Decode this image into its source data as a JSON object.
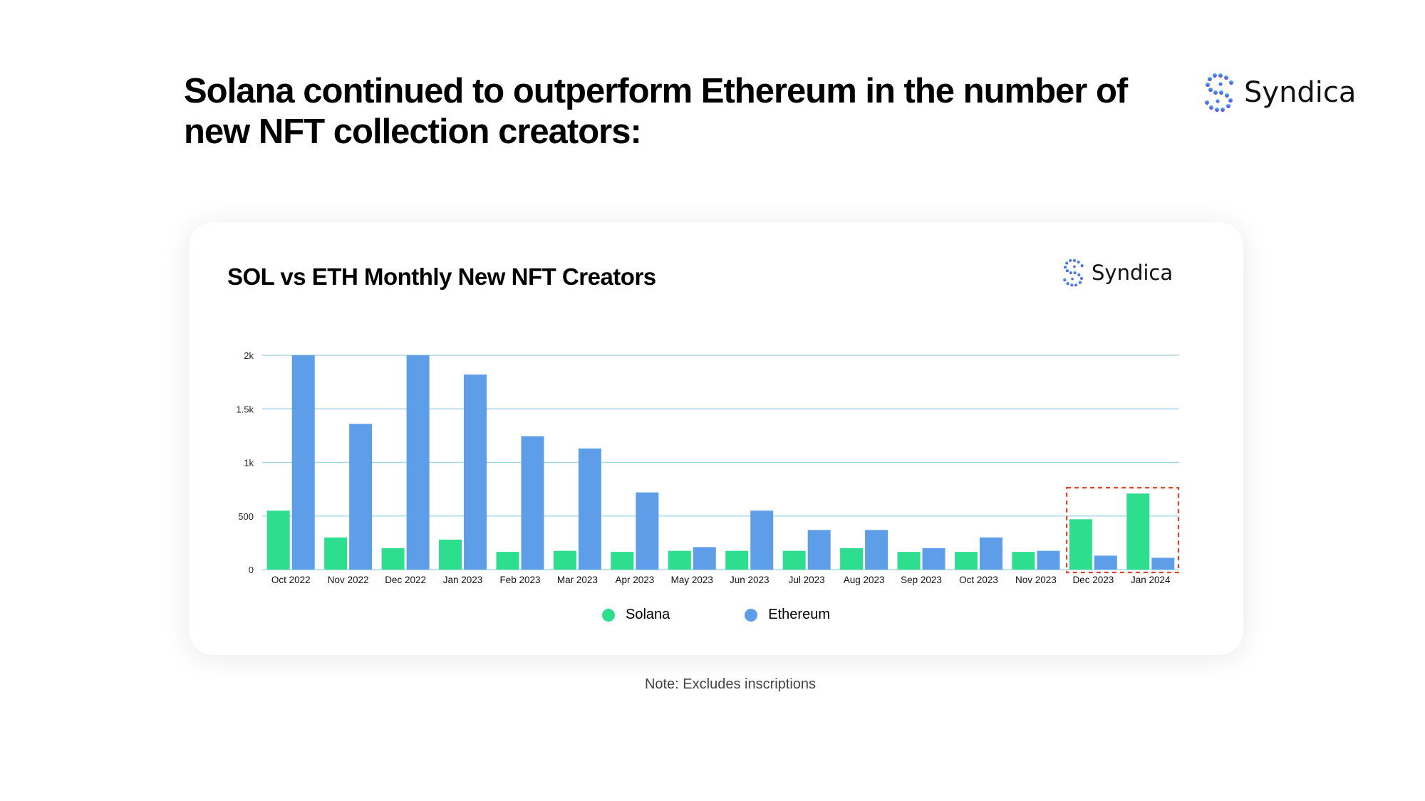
{
  "headline": "Solana continued to outperform Ethereum in the number of new NFT collection creators:",
  "brand": {
    "name": "Syndica"
  },
  "note": "Note: Excludes inscriptions",
  "colors": {
    "solana": "#2ede8f",
    "ethereum": "#5e9ee8",
    "grid": "#a8d7e6",
    "highlight": "#e0452b"
  },
  "chart_data": {
    "type": "bar",
    "title": "SOL vs ETH Monthly New NFT Creators",
    "xlabel": "",
    "ylabel": "",
    "categories": [
      "Oct 2022",
      "Nov 2022",
      "Dec 2022",
      "Jan 2023",
      "Feb 2023",
      "Mar 2023",
      "Apr 2023",
      "May 2023",
      "Jun 2023",
      "Jul 2023",
      "Aug 2023",
      "Sep 2023",
      "Oct 2023",
      "Nov 2023",
      "Dec 2023",
      "Jan 2024"
    ],
    "series": [
      {
        "name": "Solana",
        "color": "#2ede8f",
        "values": [
          550,
          300,
          200,
          280,
          165,
          175,
          165,
          175,
          175,
          175,
          200,
          165,
          165,
          165,
          470,
          710
        ]
      },
      {
        "name": "Ethereum",
        "color": "#5e9ee8",
        "values": [
          2000,
          1360,
          2000,
          1820,
          1245,
          1130,
          720,
          210,
          550,
          370,
          370,
          200,
          300,
          175,
          130,
          110
        ]
      }
    ],
    "ylim": [
      0,
      2000
    ],
    "yticks": [
      0,
      500,
      1000,
      1500,
      2000
    ],
    "ytick_labels": [
      "0",
      "500",
      "1k",
      "1.5k",
      "2k"
    ],
    "grid": true,
    "legend": "bottom-center",
    "highlight_categories": [
      "Dec 2023",
      "Jan 2024"
    ]
  }
}
